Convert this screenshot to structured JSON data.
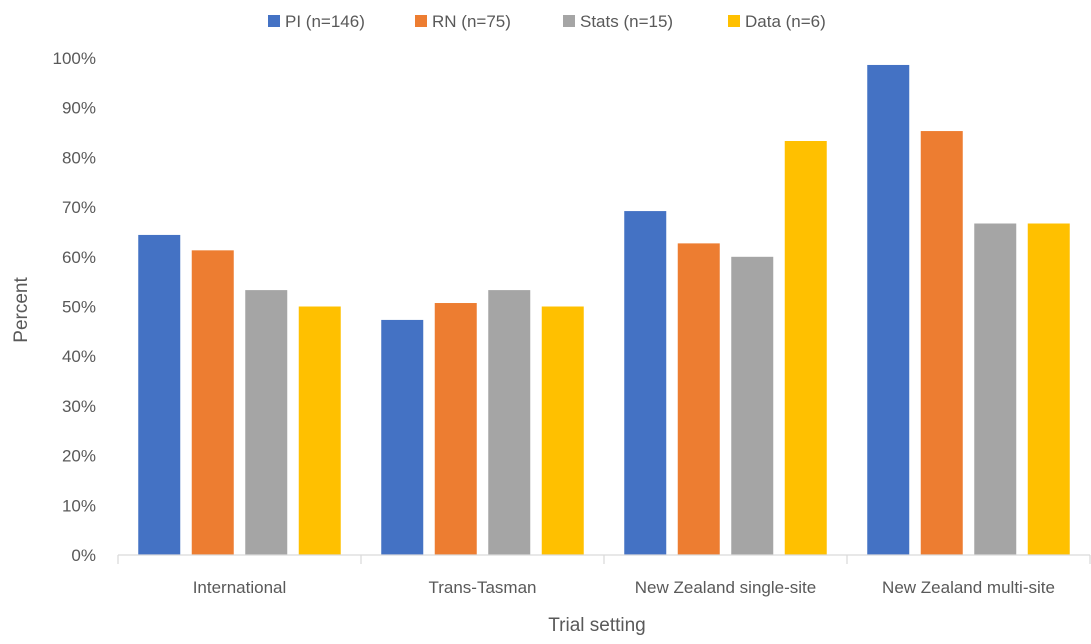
{
  "chart_data": {
    "type": "bar",
    "title": "",
    "xlabel": "Trial setting",
    "ylabel": "Percent",
    "ylim": [
      0,
      100
    ],
    "y_ticks": [
      0,
      10,
      20,
      30,
      40,
      50,
      60,
      70,
      80,
      90,
      100
    ],
    "y_tick_format": "percent",
    "grid": false,
    "legend_position": "top",
    "categories": [
      "International",
      "Trans-Tasman",
      "New Zealand single-site",
      "New Zealand multi-site"
    ],
    "series": [
      {
        "name": "PI (n=146)",
        "color": "#4472C4",
        "values": [
          64.4,
          47.3,
          69.2,
          98.6
        ]
      },
      {
        "name": "RN (n=75)",
        "color": "#ED7D31",
        "values": [
          61.3,
          50.7,
          62.7,
          85.3
        ]
      },
      {
        "name": "Stats (n=15)",
        "color": "#A5A5A5",
        "values": [
          53.3,
          53.3,
          60.0,
          66.7
        ]
      },
      {
        "name": "Data (n=6)",
        "color": "#FFC000",
        "values": [
          50.0,
          50.0,
          83.3,
          66.7
        ]
      }
    ]
  }
}
